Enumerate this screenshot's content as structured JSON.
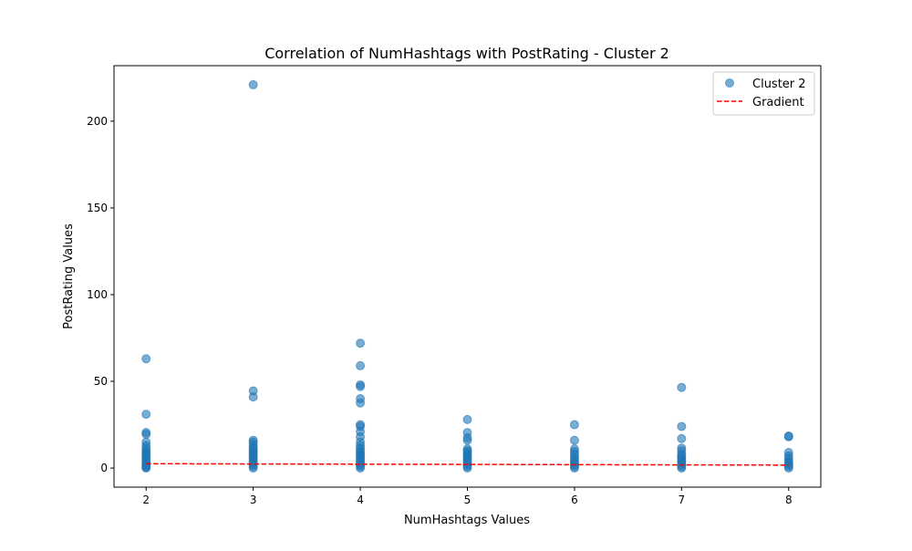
{
  "chart_data": {
    "type": "scatter",
    "title": "Correlation of NumHashtags with PostRating - Cluster 2",
    "xlabel": "NumHashtags Values",
    "ylabel": "PostRating Values",
    "xlim": [
      1.7,
      8.3
    ],
    "ylim": [
      -11,
      232
    ],
    "x_ticks": [
      2,
      3,
      4,
      5,
      6,
      7,
      8
    ],
    "y_ticks": [
      0,
      50,
      100,
      150,
      200
    ],
    "grid": false,
    "legend_position": "top-right",
    "legend": [
      "Cluster 2",
      "Gradient"
    ],
    "series": [
      {
        "name": "Cluster 2",
        "kind": "scatter",
        "color": "#1f77b4",
        "points": [
          [
            2,
            63
          ],
          [
            2,
            31
          ],
          [
            2,
            20.5
          ],
          [
            2,
            19.5
          ],
          [
            2,
            15
          ],
          [
            2,
            13
          ],
          [
            2,
            11.5
          ],
          [
            2,
            10
          ],
          [
            2,
            9
          ],
          [
            2,
            8
          ],
          [
            2,
            7
          ],
          [
            2,
            6
          ],
          [
            2,
            5
          ],
          [
            2,
            4
          ],
          [
            2,
            3
          ],
          [
            2,
            2
          ],
          [
            2,
            1
          ],
          [
            2,
            0.5
          ],
          [
            2,
            0
          ],
          [
            3,
            221
          ],
          [
            3,
            44.5
          ],
          [
            3,
            41
          ],
          [
            3,
            16
          ],
          [
            3,
            15
          ],
          [
            3,
            13.5
          ],
          [
            3,
            12
          ],
          [
            3,
            11
          ],
          [
            3,
            10
          ],
          [
            3,
            9
          ],
          [
            3,
            8
          ],
          [
            3,
            7
          ],
          [
            3,
            6
          ],
          [
            3,
            5
          ],
          [
            3,
            4
          ],
          [
            3,
            3
          ],
          [
            3,
            2
          ],
          [
            3,
            1
          ],
          [
            3,
            0
          ],
          [
            4,
            72
          ],
          [
            4,
            59
          ],
          [
            4,
            48
          ],
          [
            4,
            47
          ],
          [
            4,
            40
          ],
          [
            4,
            37.5
          ],
          [
            4,
            25
          ],
          [
            4,
            24
          ],
          [
            4,
            21
          ],
          [
            4,
            18
          ],
          [
            4,
            15
          ],
          [
            4,
            13
          ],
          [
            4,
            11.5
          ],
          [
            4,
            10
          ],
          [
            4,
            9
          ],
          [
            4,
            8
          ],
          [
            4,
            7
          ],
          [
            4,
            6
          ],
          [
            4,
            5
          ],
          [
            4,
            4
          ],
          [
            4,
            3
          ],
          [
            4,
            2
          ],
          [
            4,
            1
          ],
          [
            4,
            0
          ],
          [
            5,
            28
          ],
          [
            5,
            20.5
          ],
          [
            5,
            17.5
          ],
          [
            5,
            16
          ],
          [
            5,
            11
          ],
          [
            5,
            10
          ],
          [
            5,
            9
          ],
          [
            5,
            8
          ],
          [
            5,
            7
          ],
          [
            5,
            6
          ],
          [
            5,
            5
          ],
          [
            5,
            4
          ],
          [
            5,
            3
          ],
          [
            5,
            2
          ],
          [
            5,
            1
          ],
          [
            5,
            0
          ],
          [
            6,
            25
          ],
          [
            6,
            16
          ],
          [
            6,
            11
          ],
          [
            6,
            9.5
          ],
          [
            6,
            8
          ],
          [
            6,
            6.5
          ],
          [
            6,
            5
          ],
          [
            6,
            4
          ],
          [
            6,
            3
          ],
          [
            6,
            2
          ],
          [
            6,
            1
          ],
          [
            6,
            0
          ],
          [
            7,
            46.5
          ],
          [
            7,
            24
          ],
          [
            7,
            17
          ],
          [
            7,
            11.5
          ],
          [
            7,
            10
          ],
          [
            7,
            8
          ],
          [
            7,
            7
          ],
          [
            7,
            6
          ],
          [
            7,
            5
          ],
          [
            7,
            4
          ],
          [
            7,
            3
          ],
          [
            7,
            2
          ],
          [
            7,
            1
          ],
          [
            7,
            0
          ],
          [
            8,
            18.5
          ],
          [
            8,
            18
          ],
          [
            8,
            9
          ],
          [
            8,
            7
          ],
          [
            8,
            5.5
          ],
          [
            8,
            4
          ],
          [
            8,
            3
          ],
          [
            8,
            2
          ],
          [
            8,
            1
          ],
          [
            8,
            0
          ]
        ]
      },
      {
        "name": "Gradient",
        "kind": "line",
        "color": "#ff0000",
        "dash": "dashed",
        "x": [
          2,
          8
        ],
        "y": [
          2.5,
          1.7
        ]
      }
    ]
  }
}
